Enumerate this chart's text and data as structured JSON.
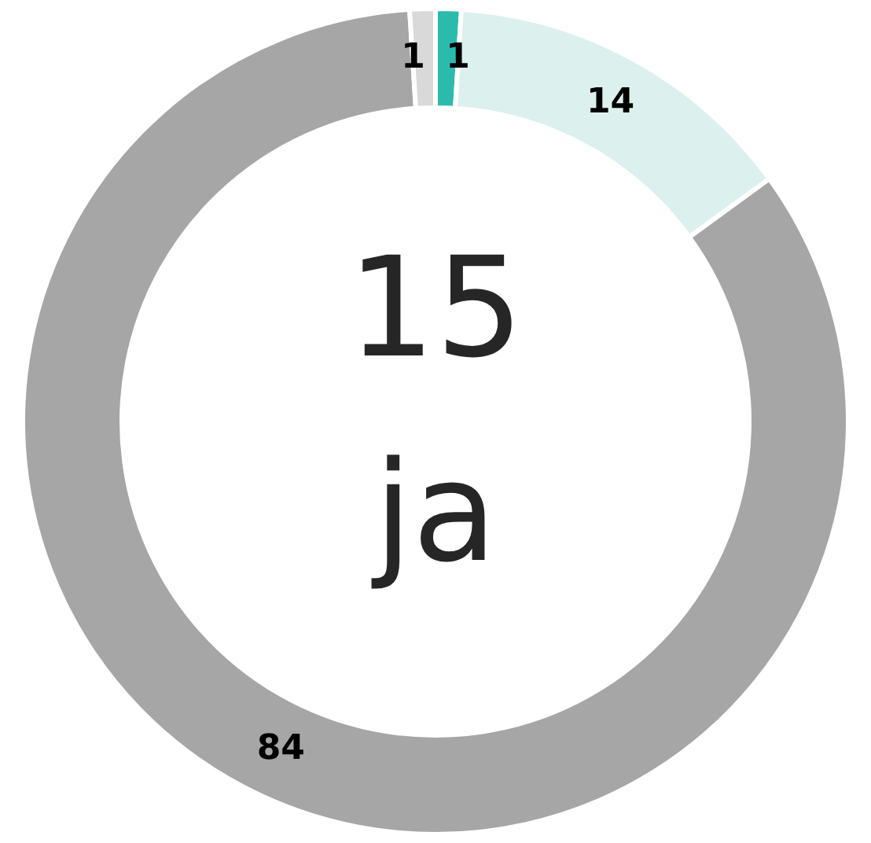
{
  "chart_data": {
    "type": "donut",
    "categories": [
      null,
      null,
      null,
      null
    ],
    "values": [
      1,
      14,
      84,
      1
    ],
    "colors": [
      "#2bbbad",
      "#dcf0ee",
      "#a6a6a6",
      "#d9d9d9"
    ],
    "data_labels": true,
    "annotations": [
      "15",
      "ja"
    ]
  }
}
